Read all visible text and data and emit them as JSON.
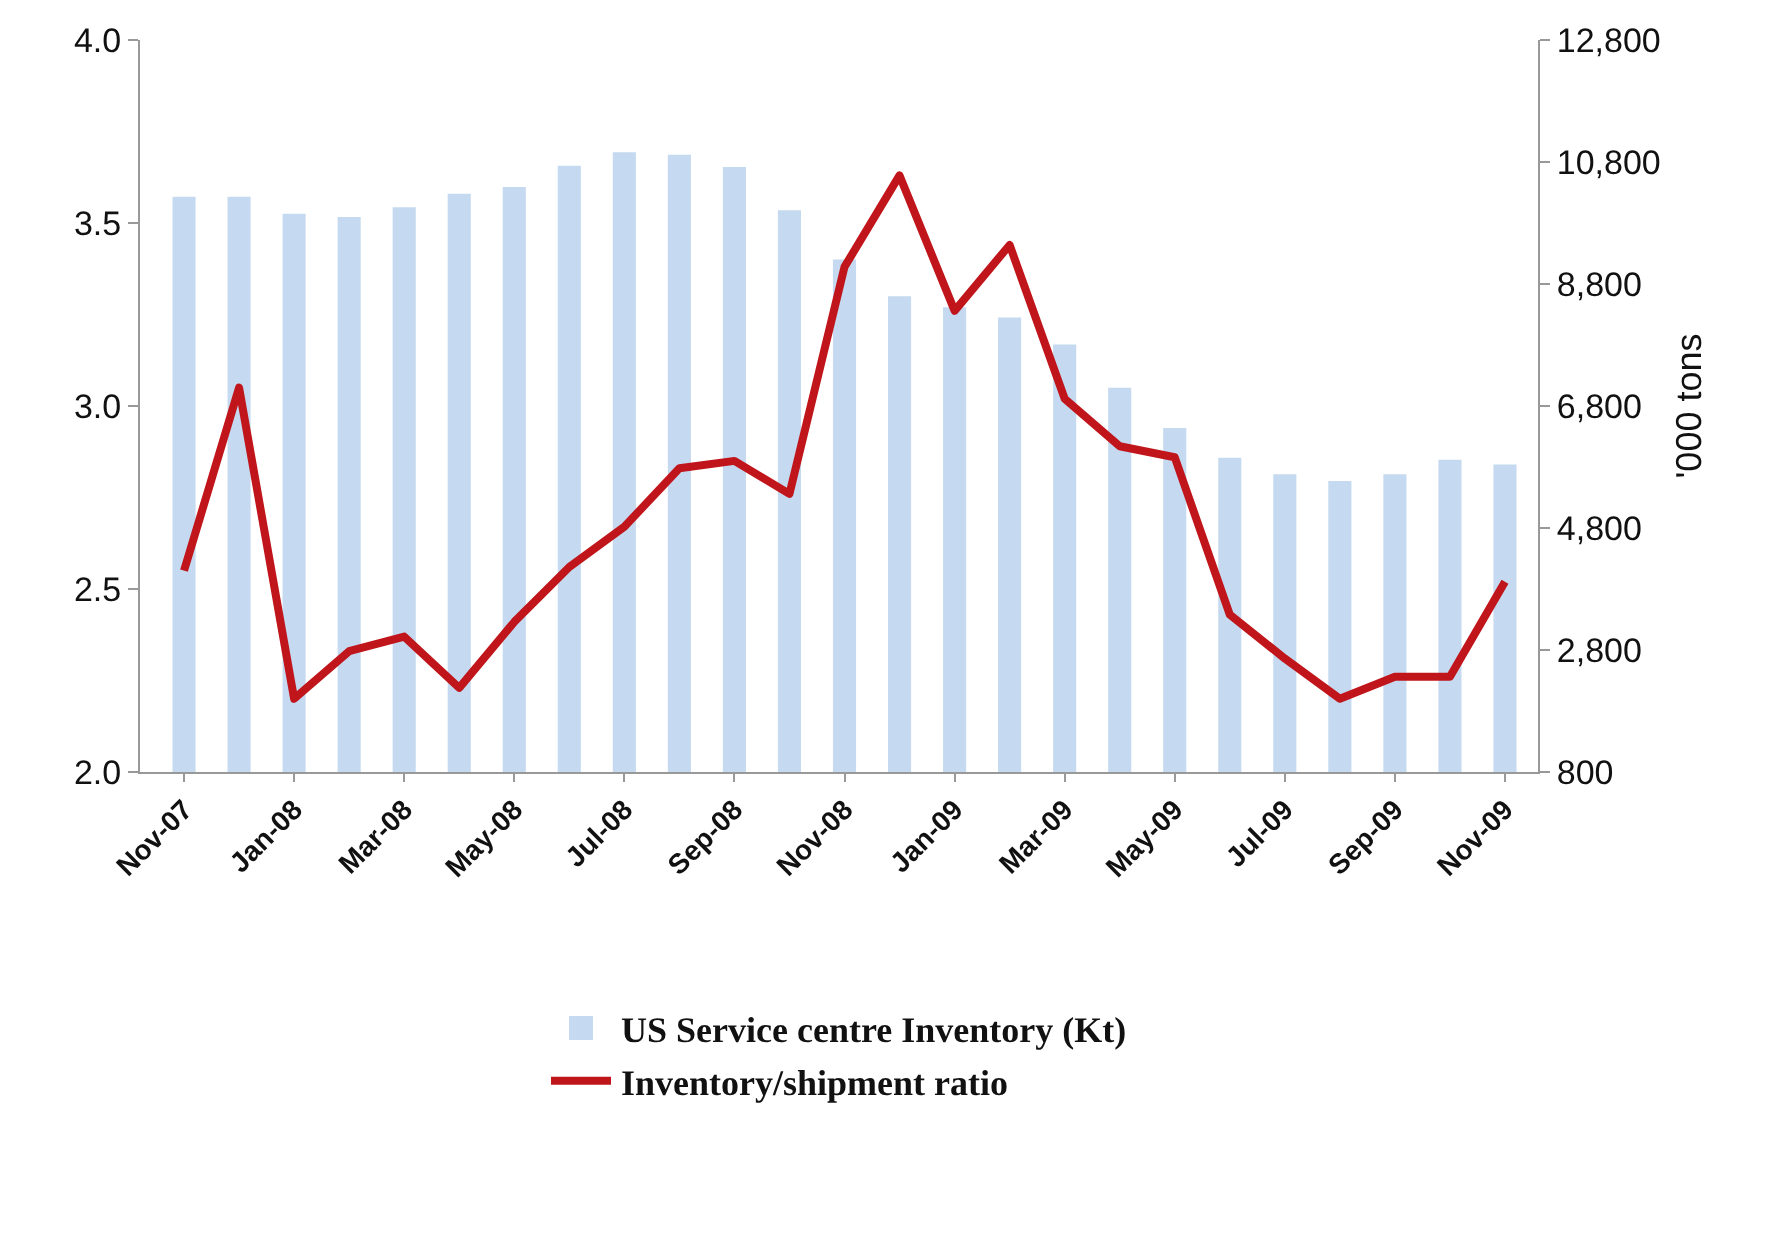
{
  "chart_data": {
    "type": "bar",
    "categories": [
      "Nov-07",
      null,
      "Jan-08",
      null,
      "Mar-08",
      null,
      "May-08",
      null,
      "Jul-08",
      null,
      "Sep-08",
      null,
      "Nov-08",
      null,
      "Jan-09",
      null,
      "Mar-09",
      null,
      "May-09",
      null,
      "Jul-09",
      null,
      "Sep-09",
      null,
      "Nov-09"
    ],
    "series": [
      {
        "name": "US Service centre Inventory (Kt)",
        "axis": "y2",
        "color": "#c5daf0",
        "values": [
          10230,
          10230,
          9950,
          9900,
          10060,
          10280,
          10390,
          10740,
          10960,
          10920,
          10720,
          10010,
          9200,
          8600,
          8420,
          8250,
          7810,
          7100,
          6440,
          5950,
          5680,
          5570,
          5680,
          5920,
          5840
        ]
      },
      {
        "name": "Inventory/shipment ratio",
        "type": "line",
        "color": "#c0161b",
        "values": [
          2.55,
          3.05,
          2.2,
          2.33,
          2.37,
          2.23,
          2.41,
          2.56,
          2.67,
          2.83,
          2.85,
          2.76,
          3.38,
          3.63,
          3.26,
          3.44,
          3.02,
          2.89,
          2.86,
          2.43,
          2.31,
          2.2,
          2.26,
          2.26,
          2.52
        ]
      }
    ],
    "y2label": "'000 tons",
    "ylim": [
      2.0,
      4.0
    ],
    "yticks": [
      {
        "value": 2.0,
        "label": "2.0"
      },
      {
        "value": 2.5,
        "label": "2.5"
      },
      {
        "value": 3.0,
        "label": "3.0"
      },
      {
        "value": 3.5,
        "label": "3.5"
      },
      {
        "value": 4.0,
        "label": "4.0"
      }
    ],
    "y2lim": [
      800,
      12800
    ],
    "y2ticks": [
      {
        "value": 800,
        "label": "800"
      },
      {
        "value": 2800,
        "label": "2,800"
      },
      {
        "value": 4800,
        "label": "4,800"
      },
      {
        "value": 6800,
        "label": "6,800"
      },
      {
        "value": 8800,
        "label": "8,800"
      },
      {
        "value": 10800,
        "label": "10,800"
      },
      {
        "value": 12800,
        "label": "12,800"
      }
    ],
    "legend": "bottom",
    "marker": "none",
    "line_style": "solid"
  }
}
